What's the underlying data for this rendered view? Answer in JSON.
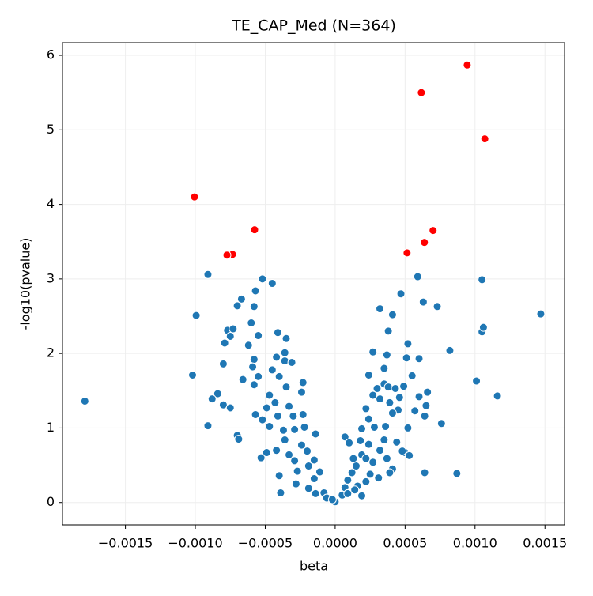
{
  "chart_data": {
    "type": "scatter",
    "title": "TE_CAP_Med (N=364)",
    "x_label": "beta",
    "y_label": "-log10(pvalue)",
    "xlim": [
      -0.00195,
      0.00164
    ],
    "ylim": [
      -0.3,
      6.17
    ],
    "xticks": [
      {
        "value": -0.0015,
        "label": "−0.0015"
      },
      {
        "value": -0.001,
        "label": "−0.0010"
      },
      {
        "value": -0.0005,
        "label": "−0.0005"
      },
      {
        "value": 0,
        "label": "0.0000"
      },
      {
        "value": 0.0005,
        "label": "0.0005"
      },
      {
        "value": 0.001,
        "label": "0.0010"
      },
      {
        "value": 0.0015,
        "label": "0.0015"
      }
    ],
    "yticks": [
      0,
      1,
      2,
      3,
      4,
      5,
      6
    ],
    "grid": true,
    "threshold": 3.32,
    "series": [
      {
        "color": "#1f77b4",
        "x": [
          -0.00179,
          -0.00091,
          -0.000994,
          -0.00102,
          -0.00091,
          0.00105,
          0.00147,
          0.00116,
          0.00101,
          0.00087,
          0.00064,
          0.00082,
          0.00073,
          0.00105,
          0.00106,
          0.00076,
          0.00059,
          0.00063,
          0.00047,
          0.00032,
          0.00041,
          0.00038,
          0.00027,
          0.00037,
          0.00052,
          0.00051,
          0.0006,
          0.00055,
          0.00066,
          0.00065,
          0.00064,
          0.00052,
          0.0005,
          0.00053,
          0.00041,
          -0.00052,
          -0.00045,
          -0.00057,
          -0.00067,
          -0.0007,
          -0.00058,
          -0.0006,
          -0.00055,
          -0.00041,
          -0.00035,
          -0.00077,
          -0.00073,
          -0.00075,
          -0.00079,
          -0.00062,
          -0.0008,
          -0.00058,
          -0.00059,
          -0.00066,
          -0.00055,
          -0.00058,
          -0.00042,
          -0.00036,
          -0.00036,
          -0.00031,
          -0.00045,
          -0.0004,
          -0.00035,
          -0.00023,
          -0.00024,
          -0.00084,
          -0.00088,
          -0.0008,
          -0.00075,
          -0.00057,
          -0.00052,
          -0.00047,
          -0.0007,
          -0.00069,
          -0.00047,
          -0.00043,
          -0.00049,
          -0.00041,
          -0.00033,
          -0.0003,
          -0.00023,
          -0.00037,
          -0.00029,
          -0.00022,
          -0.00014,
          -0.00053,
          -0.00049,
          -0.00042,
          -0.0004,
          -0.00039,
          -0.00036,
          -0.00033,
          -0.00029,
          -0.00027,
          -0.00028,
          -0.00024,
          -0.0002,
          -0.00019,
          -0.00019,
          -0.00015,
          -0.00015,
          -0.00014,
          -0.00011,
          -8e-05,
          -6e-05,
          0,
          -2e-05,
          7e-05,
          0.0001,
          7e-05,
          5e-05,
          9e-05,
          0.00012,
          0.00015,
          0.00019,
          0.00018,
          0.00019,
          0.00024,
          0.00022,
          0.00024,
          0.00027,
          0.0003,
          0.00032,
          0.00035,
          0.00035,
          0.00038,
          0.00039,
          0.00043,
          0.00045,
          0.00041,
          0.00049,
          0.00046,
          0.00057,
          0.0006,
          0.00019,
          0.00022,
          0.00025,
          0.00027,
          0.00031,
          0.00032,
          0.00035,
          0.00037,
          0.00039,
          0.00028,
          0.00036,
          0.00044,
          0.00048,
          0.00024,
          0.00022,
          0.00016,
          0.00013,
          0.00014,
          9e-05
        ],
        "values": [
          1.36,
          3.06,
          2.51,
          1.71,
          1.03,
          2.99,
          2.53,
          1.43,
          1.63,
          0.39,
          0.4,
          2.04,
          2.63,
          2.29,
          2.35,
          1.06,
          3.03,
          2.69,
          2.8,
          2.6,
          2.52,
          2.3,
          2.02,
          1.98,
          2.13,
          1.94,
          1.93,
          1.7,
          1.48,
          1.3,
          1.16,
          1.0,
          0.67,
          0.63,
          0.45,
          3.0,
          2.94,
          2.84,
          2.73,
          2.64,
          2.63,
          2.41,
          2.24,
          2.28,
          2.2,
          2.31,
          2.33,
          2.23,
          2.14,
          2.11,
          1.86,
          1.92,
          1.82,
          1.65,
          1.69,
          1.58,
          1.95,
          2.01,
          1.9,
          1.88,
          1.78,
          1.69,
          1.55,
          1.61,
          1.48,
          1.46,
          1.39,
          1.31,
          1.27,
          1.18,
          1.11,
          1.02,
          0.9,
          0.85,
          1.44,
          1.34,
          1.27,
          1.16,
          1.29,
          1.16,
          1.18,
          0.97,
          0.98,
          1.01,
          0.92,
          0.6,
          0.67,
          0.7,
          0.36,
          0.13,
          0.84,
          0.64,
          0.56,
          0.42,
          0.25,
          0.77,
          0.69,
          0.49,
          0.19,
          0.57,
          0.32,
          0.12,
          0.41,
          0.13,
          0.06,
          0.01,
          0.04,
          0.88,
          0.8,
          0.2,
          0.1,
          0.3,
          0.4,
          0.49,
          0.64,
          0.83,
          0.99,
          1.12,
          1.26,
          1.71,
          1.44,
          1.53,
          1.39,
          1.59,
          1.8,
          1.55,
          1.34,
          1.53,
          1.24,
          1.2,
          1.56,
          1.41,
          1.23,
          1.42,
          0.09,
          0.28,
          0.38,
          0.54,
          0.33,
          0.7,
          0.84,
          0.59,
          0.4,
          1.01,
          1.02,
          0.81,
          0.69,
          0.78,
          0.59,
          0.22,
          0.59,
          0.17,
          0.12
        ]
      },
      {
        "color": "#ff0000",
        "x": [
          0.000944,
          0.000616,
          0.00107,
          -0.001006,
          -0.000576,
          0.0007,
          0.000638,
          0.000514,
          -0.000734,
          -0.000774
        ],
        "values": [
          5.87,
          5.5,
          4.88,
          4.1,
          3.66,
          3.65,
          3.49,
          3.35,
          3.33,
          3.32
        ]
      }
    ]
  }
}
